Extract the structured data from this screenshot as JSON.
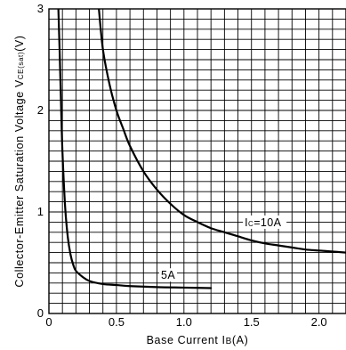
{
  "chart_data": {
    "type": "line",
    "xlabel": "Base Current IB(A)",
    "ylabel": "Collector-Emitter Saturation Voltage VCE(sat)(V)",
    "xlim": [
      0,
      2.2
    ],
    "ylim": [
      0,
      3
    ],
    "x_ticks": [
      {
        "value": 0,
        "label": "0"
      },
      {
        "value": 0.5,
        "label": "0.5"
      },
      {
        "value": 1.0,
        "label": "1.0"
      },
      {
        "value": 1.5,
        "label": "1.5"
      },
      {
        "value": 2.0,
        "label": "2.0"
      }
    ],
    "y_ticks": [
      {
        "value": 0,
        "label": "0"
      },
      {
        "value": 1,
        "label": "1"
      },
      {
        "value": 2,
        "label": "2"
      },
      {
        "value": 3,
        "label": "3"
      }
    ],
    "grid": true,
    "grid_step_x": 0.1,
    "grid_step_y": 0.1,
    "series": [
      {
        "name": "IC=10A",
        "x": [
          0.37,
          0.4,
          0.45,
          0.5,
          0.55,
          0.6,
          0.7,
          0.8,
          0.9,
          1.0,
          1.1,
          1.2,
          1.3,
          1.4,
          1.5,
          1.6,
          1.7,
          1.8,
          1.9,
          2.0,
          2.1,
          2.2
        ],
        "y": [
          3.0,
          2.6,
          2.25,
          2.0,
          1.82,
          1.65,
          1.4,
          1.22,
          1.08,
          0.97,
          0.9,
          0.84,
          0.8,
          0.76,
          0.72,
          0.69,
          0.67,
          0.65,
          0.63,
          0.62,
          0.61,
          0.6
        ]
      },
      {
        "name": "5A",
        "x": [
          0.07,
          0.08,
          0.09,
          0.1,
          0.12,
          0.14,
          0.16,
          0.18,
          0.2,
          0.25,
          0.3,
          0.4,
          0.5,
          0.6,
          0.8,
          1.0,
          1.2
        ],
        "y": [
          3.0,
          2.55,
          2.05,
          1.6,
          1.05,
          0.75,
          0.58,
          0.48,
          0.42,
          0.36,
          0.32,
          0.29,
          0.28,
          0.27,
          0.26,
          0.255,
          0.25
        ]
      }
    ],
    "annotations": [
      {
        "id": "ic10",
        "main": "I",
        "sub": "C",
        "rest": "=10A",
        "x": 1.45,
        "y": 0.86
      },
      {
        "id": "ic5",
        "main": "",
        "sub": "",
        "rest": "5A",
        "x": 0.83,
        "y": 0.34
      }
    ],
    "ylabel_parts": {
      "main": "Collector-Emitter Saturation Voltage V",
      "sub": "CE(sat)",
      "rest": "(V)"
    },
    "xlabel_parts": {
      "main": "Base Current I",
      "sub": "B",
      "rest": "(A)"
    }
  }
}
